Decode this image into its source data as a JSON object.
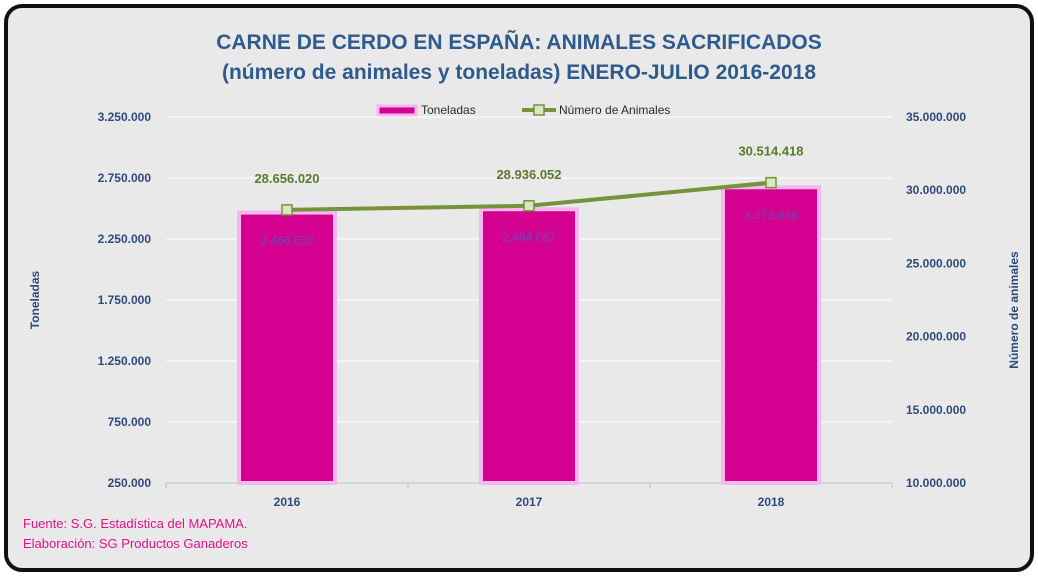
{
  "colors": {
    "title": "#2e5a8c",
    "axis_text": "#2e4a7a",
    "bar": "#d4008f",
    "bar_border": "#f4b8ec",
    "line": "#76933c",
    "marker_fill": "#d8e8c0",
    "line_label": "#5a7a2a",
    "bar_label": "#6a4ab8",
    "footer": "#e0128a",
    "background": "#e9e9e9"
  },
  "chart_data": {
    "type": "bar",
    "title": "CARNE DE CERDO EN ESPAÑA: ANIMALES SACRIFICADOS",
    "subtitle": "(número de animales y toneladas) ENERO-JULIO 2016-2018",
    "categories": [
      "2016",
      "2017",
      "2018"
    ],
    "series": [
      {
        "name": "Toneladas",
        "type": "bar",
        "axis": "left",
        "values": [
          2466532,
          2494087,
          2673889
        ],
        "labels": [
          "2.466.532",
          "2.494.087",
          "2.673.889"
        ]
      },
      {
        "name": "Número de Animales",
        "type": "line",
        "axis": "right",
        "values": [
          28656020,
          28936052,
          30514418
        ],
        "labels": [
          "28.656.020",
          "28.936.052",
          "30.514.418"
        ]
      }
    ],
    "ylabel_left": "Toneladas",
    "ylabel_right": "Número de animales",
    "ylim_left": [
      250000,
      3250000
    ],
    "ylim_right": [
      10000000,
      35000000
    ],
    "left_ticks": [
      250000,
      750000,
      1250000,
      1750000,
      2250000,
      2750000,
      3250000
    ],
    "left_tick_labels": [
      "250.000",
      "750.000",
      "1.250.000",
      "1.750.000",
      "2.250.000",
      "2.750.000",
      "3.250.000"
    ],
    "right_ticks": [
      10000000,
      15000000,
      20000000,
      25000000,
      30000000,
      35000000
    ],
    "right_tick_labels": [
      "10.000.000",
      "15.000.000",
      "20.000.000",
      "25.000.000",
      "30.000.000",
      "35.000.000"
    ],
    "grid": true,
    "legend_position": "top-center"
  },
  "footer": {
    "source": "Fuente: S.G. Estadística del MAPAMA.",
    "elaboration": "Elaboración: SG Productos Ganaderos"
  }
}
